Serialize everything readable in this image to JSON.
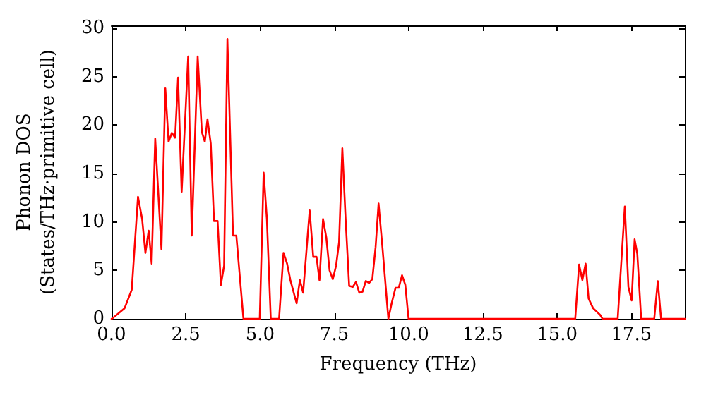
{
  "chart_data": {
    "type": "line",
    "xlabel": "Frequency (THz)",
    "ylabel": "Phonon DOS\n(States/THz·primitive cell)",
    "xlim": [
      0,
      19.3
    ],
    "ylim": [
      0,
      30.3
    ],
    "xticks": [
      {
        "value": 0,
        "label": "0.0"
      },
      {
        "value": 2.5,
        "label": "2.5"
      },
      {
        "value": 5,
        "label": "5.0"
      },
      {
        "value": 7.5,
        "label": "7.5"
      },
      {
        "value": 10,
        "label": "10.0"
      },
      {
        "value": 12.5,
        "label": "12.5"
      },
      {
        "value": 15,
        "label": "15.0"
      },
      {
        "value": 17.5,
        "label": "17.5"
      }
    ],
    "yticks": [
      0,
      5,
      10,
      15,
      20,
      25,
      30
    ],
    "grid": false,
    "marker": "none",
    "line_style": "solid",
    "series": [
      {
        "color": "#ff0000",
        "x": [
          0,
          0.05,
          0.44,
          0.68,
          0.89,
          1.03,
          1.14,
          1.25,
          1.35,
          1.47,
          1.68,
          1.81,
          1.92,
          2.03,
          2.14,
          2.24,
          2.36,
          2.58,
          2.7,
          2.9,
          3.04,
          3.14,
          3.23,
          3.34,
          3.45,
          3.57,
          3.68,
          3.79,
          3.9,
          4.09,
          4.2,
          4.44,
          4.9,
          4.99,
          5.12,
          5.23,
          5.36,
          5.64,
          5.79,
          5.91,
          6.02,
          6.23,
          6.34,
          6.45,
          6.67,
          6.79,
          6.9,
          7.0,
          7.12,
          7.23,
          7.34,
          7.45,
          7.56,
          7.66,
          7.77,
          7.88,
          8.0,
          8.12,
          8.23,
          8.34,
          8.45,
          8.56,
          8.67,
          8.78,
          8.89,
          8.99,
          9.12,
          9.32,
          9.43,
          9.56,
          9.67,
          9.78,
          9.89,
          10.0,
          15.45,
          15.61,
          15.74,
          15.85,
          15.96,
          16.06,
          16.21,
          16.45,
          16.53,
          17.04,
          17.28,
          17.4,
          17.51,
          17.61,
          17.7,
          17.83,
          18.27,
          18.39,
          18.5,
          19.3
        ],
        "values": [
          0,
          0.1,
          1.1,
          3.0,
          12.6,
          10.3,
          6.8,
          9.1,
          5.7,
          18.6,
          7.2,
          23.8,
          18.3,
          19.2,
          18.7,
          24.9,
          13.1,
          27.1,
          8.6,
          27.1,
          19.3,
          18.3,
          20.6,
          18.1,
          10.1,
          10.1,
          3.5,
          5.5,
          28.9,
          8.6,
          8.6,
          0,
          0,
          0,
          15.1,
          10.3,
          0,
          0,
          6.8,
          5.7,
          4.0,
          1.6,
          4.0,
          2.7,
          11.2,
          6.4,
          6.4,
          4.0,
          10.3,
          8.4,
          5.0,
          4.1,
          5.5,
          7.9,
          17.6,
          10.3,
          3.4,
          3.3,
          3.8,
          2.7,
          2.8,
          3.9,
          3.7,
          4.1,
          7.4,
          11.9,
          7.4,
          0,
          1.6,
          3.2,
          3.2,
          4.5,
          3.5,
          0,
          0,
          0,
          5.6,
          4.0,
          5.7,
          2.1,
          1.1,
          0.4,
          0,
          0,
          11.6,
          3.3,
          1.9,
          8.2,
          6.7,
          0,
          0,
          3.9,
          0,
          0
        ]
      }
    ]
  }
}
